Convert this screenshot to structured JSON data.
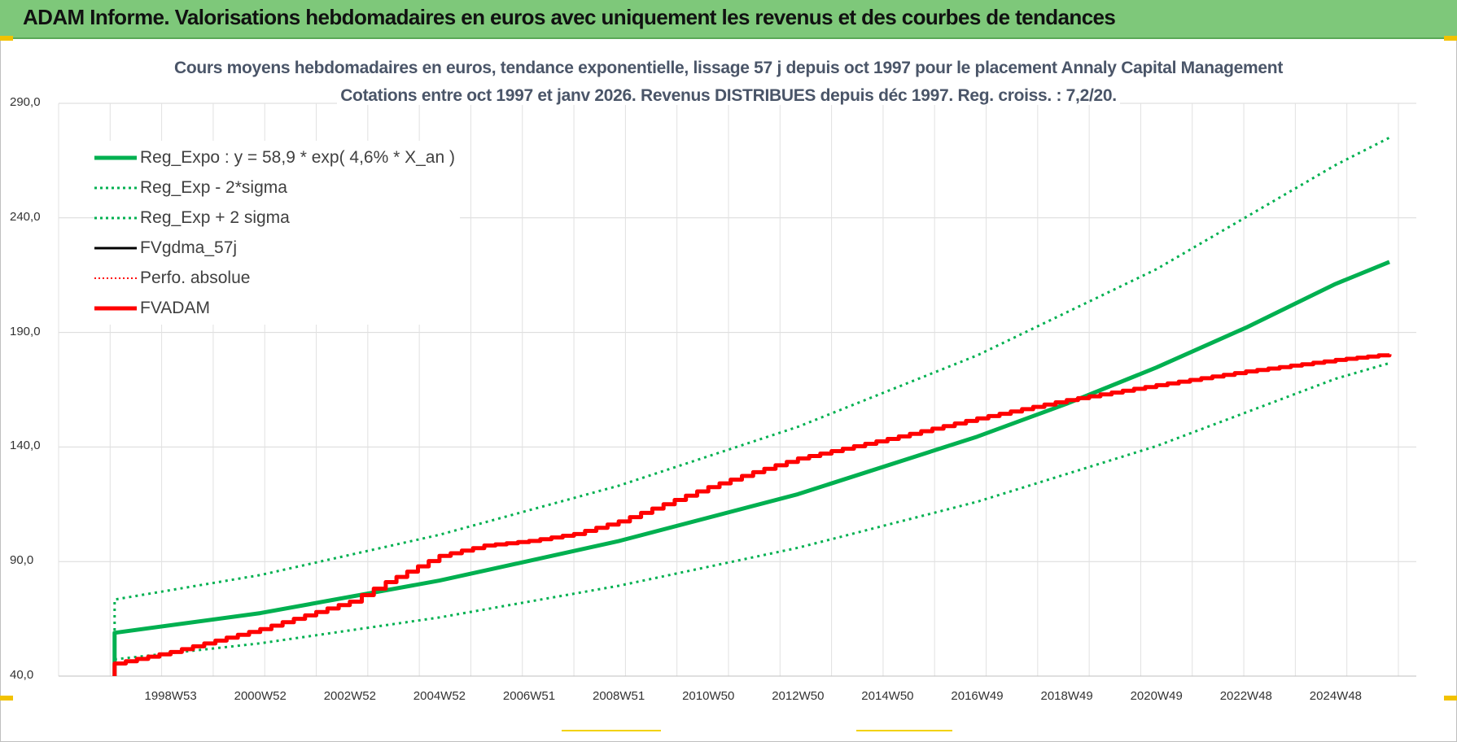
{
  "header": {
    "title": "ADAM Informe. Valorisations hebdomadaires en euros avec uniquement les revenus et des courbes de tendances"
  },
  "chart_data": {
    "type": "line",
    "title": "Cours moyens hebdomadaires en euros, tendance exponentielle, lissage 57 j depuis oct 1997 pour le placement Annaly Capital Management",
    "subtitle": "Cotations entre oct 1997 et janv 2026. Revenus DISTRIBUES depuis déc 1997. Reg. croiss. : 7,2/20.",
    "xlabel": "",
    "ylabel": "",
    "ylim": [
      40,
      290
    ],
    "xlim": [
      1995.5,
      2025.8
    ],
    "yticks": [
      "290,0",
      "240,0",
      "190,0",
      "140,0",
      "90,0",
      "40,0"
    ],
    "ytick_values": [
      290,
      240,
      190,
      140,
      90,
      40
    ],
    "xticks": [
      "1998W53",
      "2000W52",
      "2002W52",
      "2004W52",
      "2006W51",
      "2008W51",
      "2010W50",
      "2012W50",
      "2014W50",
      "2016W49",
      "2018W49",
      "2020W49",
      "2022W48",
      "2024W48"
    ],
    "xtick_values": [
      1998,
      2000,
      2002,
      2004,
      2006,
      2008,
      2010,
      2012,
      2014,
      2016,
      2018,
      2020,
      2022,
      2024
    ],
    "grid": true,
    "legend_position": "top-left",
    "series": [
      {
        "name": "Reg_Expo : y = 58,9 * exp( 4,6% *  X_an )",
        "color": "#00b050",
        "style": "solid-thick",
        "x": [
          1996.75,
          1996.75,
          2000,
          2004,
          2008,
          2012,
          2016,
          2018,
          2020,
          2022,
          2024,
          2025.2
        ],
        "y": [
          40,
          58.9,
          67.5,
          81.7,
          98.9,
          119.4,
          144.5,
          158.9,
          174.7,
          192.1,
          211.2,
          220.8
        ]
      },
      {
        "name": "Reg_Exp - 2*sigma",
        "color": "#00b050",
        "style": "dotted",
        "x": [
          1996.75,
          2000,
          2004,
          2008,
          2012,
          2016,
          2020,
          2024,
          2025.2
        ],
        "y": [
          47.3,
          54.3,
          65.6,
          79.4,
          96.0,
          116.1,
          140.4,
          169.8,
          176.6
        ]
      },
      {
        "name": "Reg_Exp + 2 sigma",
        "color": "#00b050",
        "style": "dotted",
        "x": [
          1996.75,
          1996.75,
          2000,
          2004,
          2008,
          2012,
          2016,
          2020,
          2024,
          2025.2
        ],
        "y": [
          40,
          73.4,
          84.1,
          101.7,
          123.1,
          148.8,
          180.0,
          217.6,
          263.1,
          275.0
        ]
      },
      {
        "name": "FVgdma_57j",
        "color": "#000000",
        "style": "solid",
        "x": [],
        "y": []
      },
      {
        "name": "Perfo. absolue",
        "color": "#ff0000",
        "style": "dotted-thin",
        "x": [],
        "y": []
      },
      {
        "name": "FVADAM",
        "color": "#ff0000",
        "style": "solid-thick",
        "x": [
          1996.75,
          1996.75,
          1998,
          2000,
          2002,
          2002.8,
          2004,
          2005,
          2006,
          2007,
          2008,
          2009,
          2010,
          2011,
          2012,
          2014,
          2016,
          2018,
          2020,
          2022,
          2024,
          2025.2
        ],
        "y": [
          40,
          45.5,
          50.5,
          60.5,
          72.5,
          81,
          92.5,
          97,
          99,
          102,
          107.5,
          115,
          122.5,
          129,
          135,
          143.5,
          152.5,
          160.5,
          167,
          173,
          178,
          180.5
        ]
      }
    ]
  }
}
